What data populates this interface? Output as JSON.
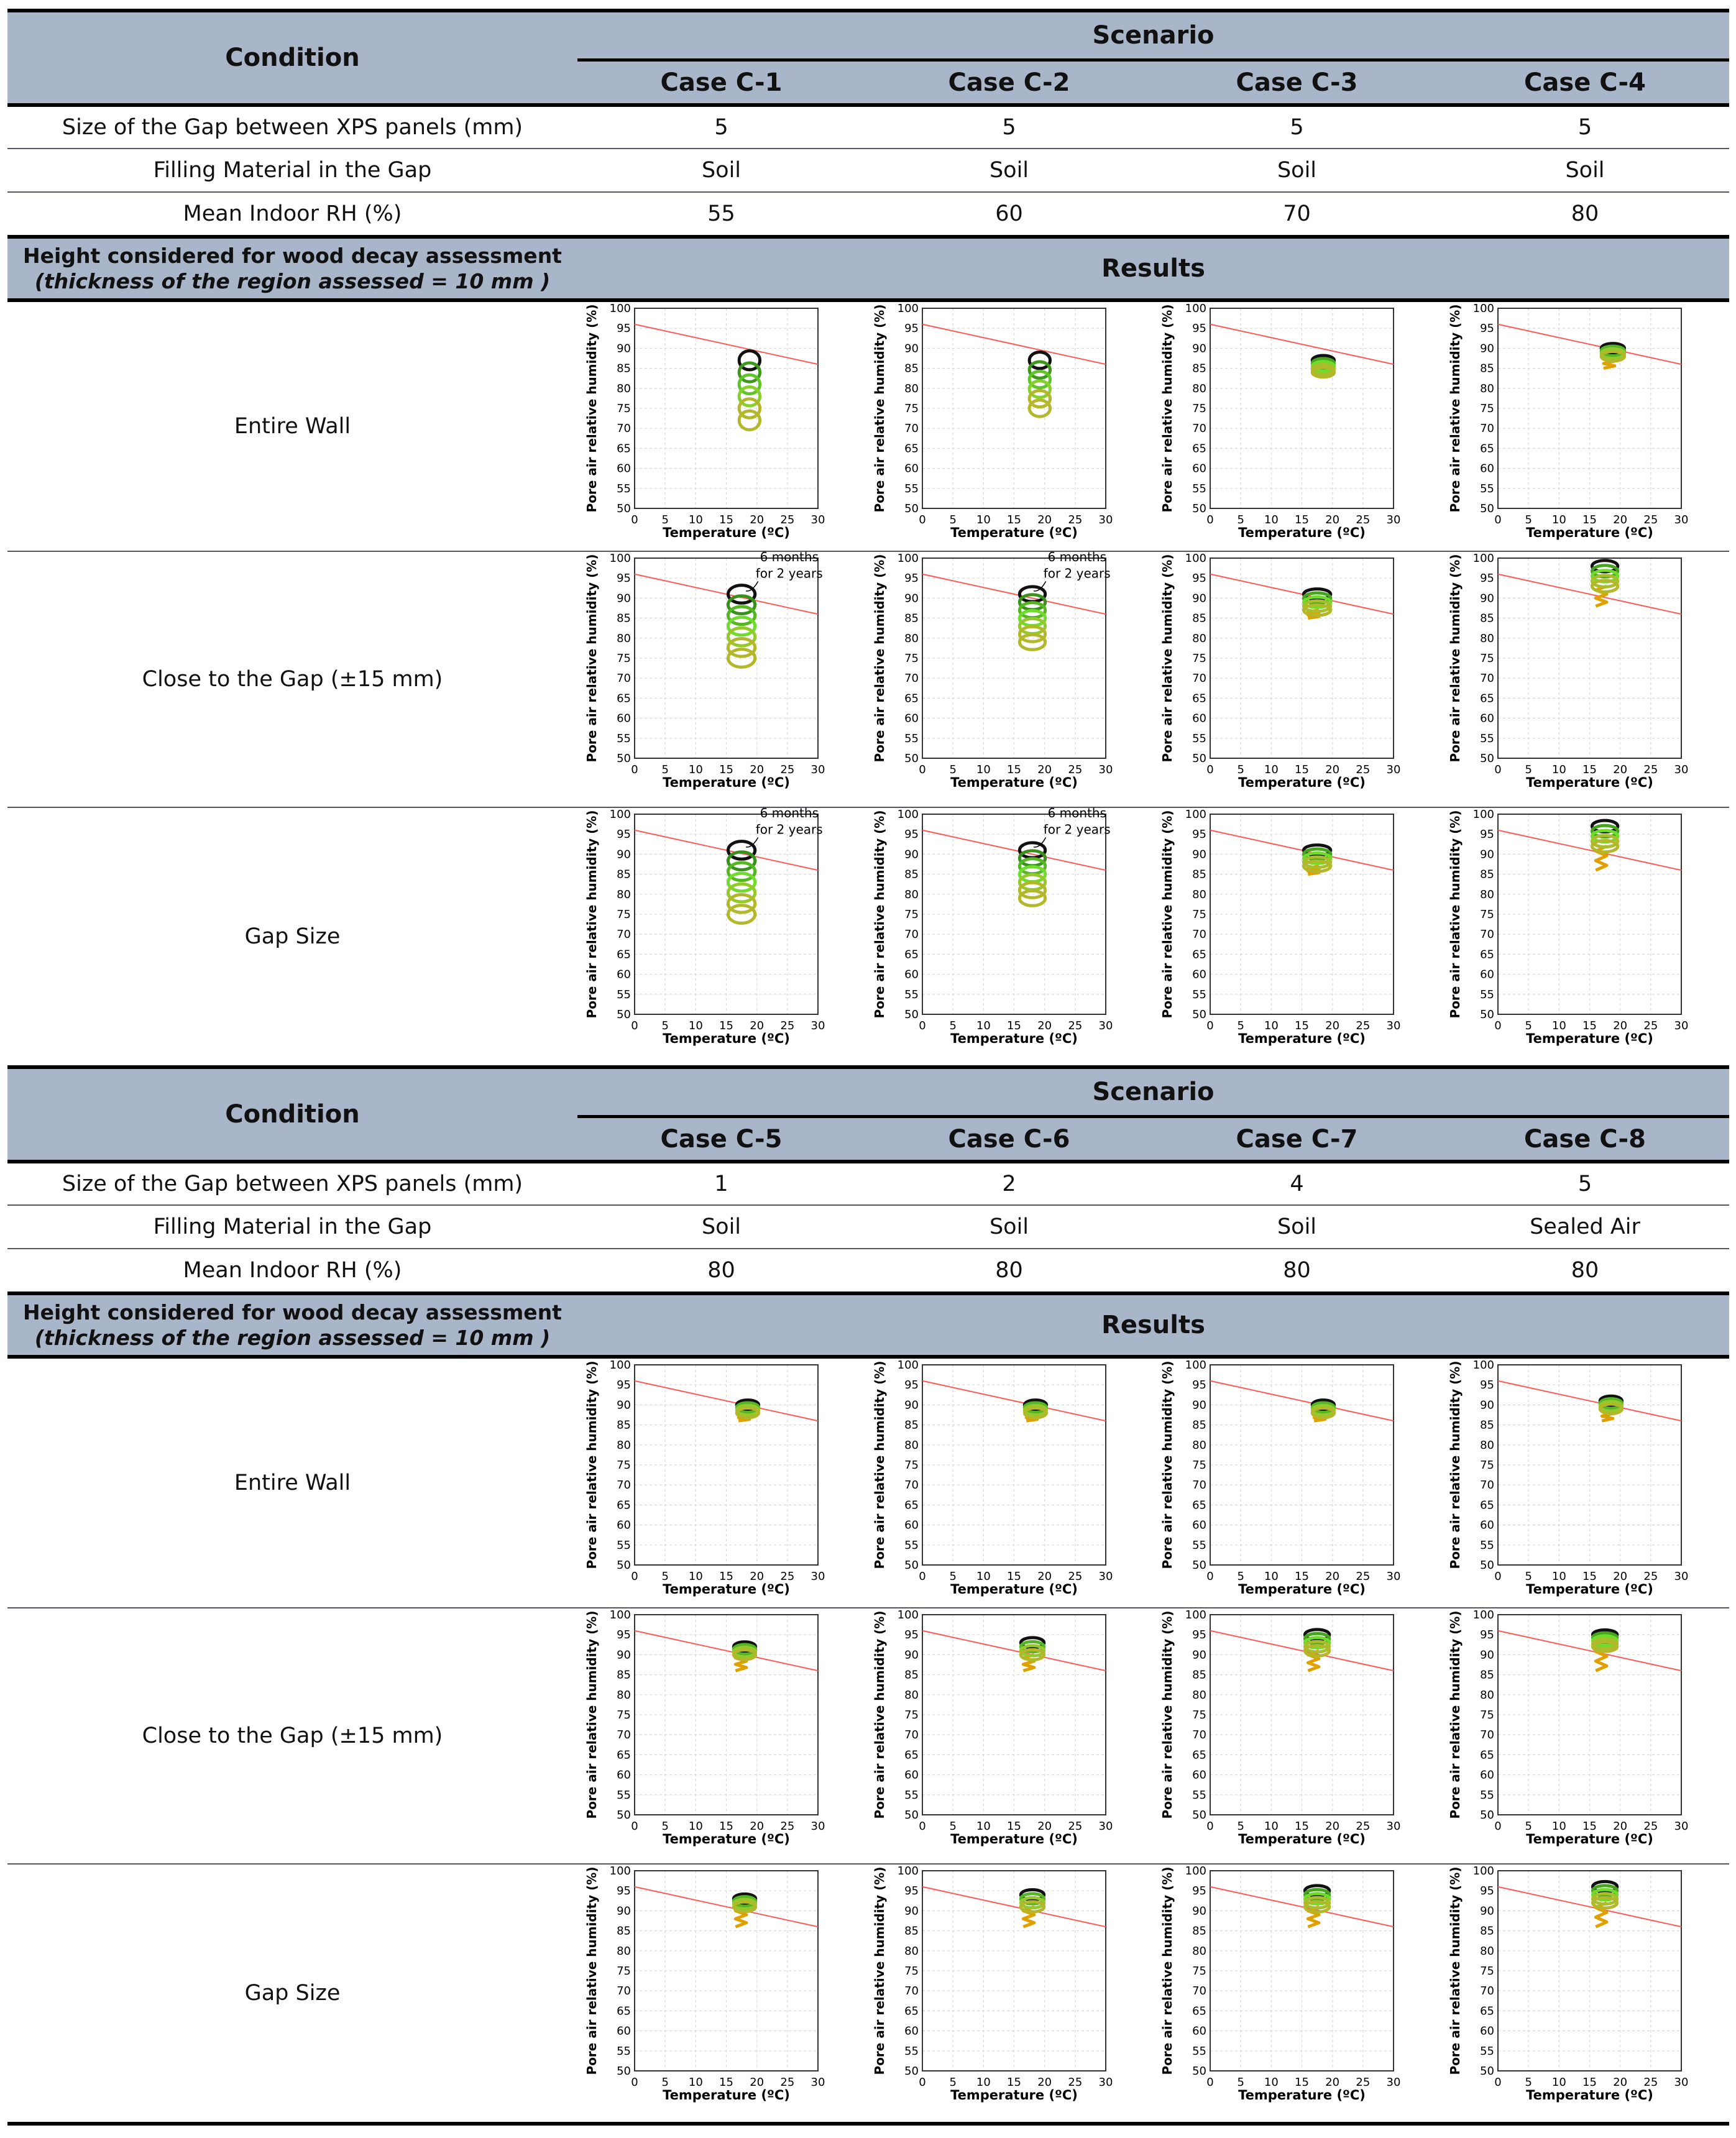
{
  "blocks": [
    {
      "condition_label": "Condition",
      "scenario_label": "Scenario",
      "cases": [
        "Case C-1",
        "Case C-2",
        "Case C-3",
        "Case C-4"
      ],
      "rows": [
        {
          "label": "Size of the Gap between XPS panels (mm)",
          "values": [
            "5",
            "5",
            "5",
            "5"
          ]
        },
        {
          "label": "Filling Material in the Gap",
          "values": [
            "Soil",
            "Soil",
            "Soil",
            "Soil"
          ]
        },
        {
          "label": "Mean Indoor RH (%)",
          "values": [
            "55",
            "60",
            "70",
            "80"
          ]
        }
      ],
      "decay_title": "Height considered for wood decay assessment",
      "decay_subtitle": "(thickness of the region assessed = 10 mm )",
      "results_label": "Results",
      "result_rows": [
        "Entire Wall",
        "Close to the Gap (±15 mm)",
        "Gap Size"
      ]
    },
    {
      "condition_label": "Condition",
      "scenario_label": "Scenario",
      "cases": [
        "Case C-5",
        "Case C-6",
        "Case C-7",
        "Case C-8"
      ],
      "rows": [
        {
          "label": "Size of the Gap between XPS panels (mm)",
          "values": [
            "1",
            "2",
            "4",
            "5"
          ]
        },
        {
          "label": "Filling Material in the Gap",
          "values": [
            "Soil",
            "Soil",
            "Soil",
            "Sealed Air"
          ]
        },
        {
          "label": "Mean Indoor RH (%)",
          "values": [
            "80",
            "80",
            "80",
            "80"
          ]
        }
      ],
      "decay_title": "Height considered for wood decay assessment",
      "decay_subtitle": "(thickness of the region assessed = 10 mm )",
      "results_label": "Results",
      "result_rows": [
        "Entire Wall",
        "Close to the Gap (±15 mm)",
        "Gap Size"
      ]
    }
  ],
  "chart_data": {
    "type": "scatter",
    "xlabel": "Temperature (ºC)",
    "ylabel": "Pore air relative humidity (%)",
    "xlim": [
      0,
      30
    ],
    "ylim": [
      50,
      100
    ],
    "x_ticks": [
      "0",
      "5",
      "10",
      "15",
      "20",
      "25",
      "30"
    ],
    "y_ticks": [
      "50",
      "55",
      "60",
      "65",
      "70",
      "75",
      "80",
      "85",
      "90",
      "95",
      "100"
    ],
    "threshold_line": {
      "x": [
        0,
        30
      ],
      "y": [
        96,
        86
      ],
      "color": "#ff5a5a"
    },
    "annotation": {
      "line1": "6 months",
      "line2": "for 2 years"
    },
    "colors": {
      "first_year": "#e0a000",
      "mid_years": "#6fdc2c",
      "late_years": "#1d6b12",
      "final": "#111111",
      "olive": "#b3b82a"
    },
    "plots": [
      {
        "case": "Case C-1",
        "row": "Entire Wall",
        "x_center": 18.8,
        "y_top": 87,
        "y_bottom": 72,
        "x_width": 3.4,
        "loops": 6,
        "start": null,
        "annot": false
      },
      {
        "case": "Case C-2",
        "row": "Entire Wall",
        "x_center": 19.2,
        "y_top": 87,
        "y_bottom": 75,
        "x_width": 3.4,
        "loops": 6,
        "start": null,
        "annot": false
      },
      {
        "case": "Case C-3",
        "row": "Entire Wall",
        "x_center": 18.5,
        "y_top": 87,
        "y_bottom": 84,
        "x_width": 3.6,
        "loops": 5,
        "start": null,
        "annot": false
      },
      {
        "case": "Case C-4",
        "row": "Entire Wall",
        "x_center": 18.8,
        "y_top": 90,
        "y_bottom": 88,
        "x_width": 3.8,
        "loops": 4,
        "start": 85,
        "annot": false
      },
      {
        "case": "Case C-1",
        "row": "Close to the Gap (±15 mm)",
        "x_center": 17.5,
        "y_top": 91,
        "y_bottom": 75,
        "x_width": 4.4,
        "loops": 7,
        "start": null,
        "annot": true
      },
      {
        "case": "Case C-2",
        "row": "Close to the Gap (±15 mm)",
        "x_center": 18,
        "y_top": 91,
        "y_bottom": 79,
        "x_width": 4.2,
        "loops": 7,
        "start": null,
        "annot": true
      },
      {
        "case": "Case C-3",
        "row": "Close to the Gap (±15 mm)",
        "x_center": 17.5,
        "y_top": 91,
        "y_bottom": 87,
        "x_width": 4.4,
        "loops": 5,
        "start": 85,
        "annot": false
      },
      {
        "case": "Case C-4",
        "row": "Close to the Gap (±15 mm)",
        "x_center": 17.5,
        "y_top": 98,
        "y_bottom": 93,
        "x_width": 4.2,
        "loops": 5,
        "start": 88,
        "annot": false
      },
      {
        "case": "Case C-1",
        "row": "Gap Size",
        "x_center": 17.5,
        "y_top": 91,
        "y_bottom": 75,
        "x_width": 4.4,
        "loops": 7,
        "start": null,
        "annot": true
      },
      {
        "case": "Case C-2",
        "row": "Gap Size",
        "x_center": 18,
        "y_top": 91,
        "y_bottom": 79,
        "x_width": 4.2,
        "loops": 7,
        "start": null,
        "annot": true
      },
      {
        "case": "Case C-3",
        "row": "Gap Size",
        "x_center": 17.5,
        "y_top": 91,
        "y_bottom": 87,
        "x_width": 4.4,
        "loops": 5,
        "start": 85,
        "annot": false
      },
      {
        "case": "Case C-4",
        "row": "Gap Size",
        "x_center": 17.5,
        "y_top": 97,
        "y_bottom": 92,
        "x_width": 4.2,
        "loops": 5,
        "start": 86,
        "annot": false
      },
      {
        "case": "Case C-5",
        "row": "Entire Wall",
        "x_center": 18.5,
        "y_top": 90,
        "y_bottom": 88,
        "x_width": 3.6,
        "loops": 4,
        "start": 86,
        "annot": false
      },
      {
        "case": "Case C-6",
        "row": "Entire Wall",
        "x_center": 18.5,
        "y_top": 90,
        "y_bottom": 88,
        "x_width": 3.6,
        "loops": 4,
        "start": 86,
        "annot": false
      },
      {
        "case": "Case C-7",
        "row": "Entire Wall",
        "x_center": 18.5,
        "y_top": 90,
        "y_bottom": 88,
        "x_width": 3.6,
        "loops": 4,
        "start": 86,
        "annot": false
      },
      {
        "case": "Case C-8",
        "row": "Entire Wall",
        "x_center": 18.5,
        "y_top": 91,
        "y_bottom": 89,
        "x_width": 3.6,
        "loops": 4,
        "start": 86,
        "annot": false
      },
      {
        "case": "Case C-5",
        "row": "Close to the Gap (±15 mm)",
        "x_center": 18,
        "y_top": 92,
        "y_bottom": 90,
        "x_width": 3.6,
        "loops": 4,
        "start": 86,
        "annot": false
      },
      {
        "case": "Case C-6",
        "row": "Close to the Gap (±15 mm)",
        "x_center": 18,
        "y_top": 93,
        "y_bottom": 90,
        "x_width": 3.8,
        "loops": 4,
        "start": 86,
        "annot": false
      },
      {
        "case": "Case C-7",
        "row": "Close to the Gap (±15 mm)",
        "x_center": 17.5,
        "y_top": 95,
        "y_bottom": 91,
        "x_width": 4.0,
        "loops": 5,
        "start": 86,
        "annot": false
      },
      {
        "case": "Case C-8",
        "row": "Close to the Gap (±15 mm)",
        "x_center": 17.5,
        "y_top": 95,
        "y_bottom": 92,
        "x_width": 4.0,
        "loops": 5,
        "start": 86,
        "annot": false
      },
      {
        "case": "Case C-5",
        "row": "Gap Size",
        "x_center": 18,
        "y_top": 93,
        "y_bottom": 91,
        "x_width": 3.6,
        "loops": 4,
        "start": 86,
        "annot": false
      },
      {
        "case": "Case C-6",
        "row": "Gap Size",
        "x_center": 18,
        "y_top": 94,
        "y_bottom": 91,
        "x_width": 3.8,
        "loops": 4,
        "start": 86,
        "annot": false
      },
      {
        "case": "Case C-7",
        "row": "Gap Size",
        "x_center": 17.5,
        "y_top": 95,
        "y_bottom": 91,
        "x_width": 4.0,
        "loops": 5,
        "start": 86,
        "annot": false
      },
      {
        "case": "Case C-8",
        "row": "Gap Size",
        "x_center": 17.5,
        "y_top": 96,
        "y_bottom": 92,
        "x_width": 4.0,
        "loops": 5,
        "start": 86,
        "annot": false
      }
    ]
  }
}
